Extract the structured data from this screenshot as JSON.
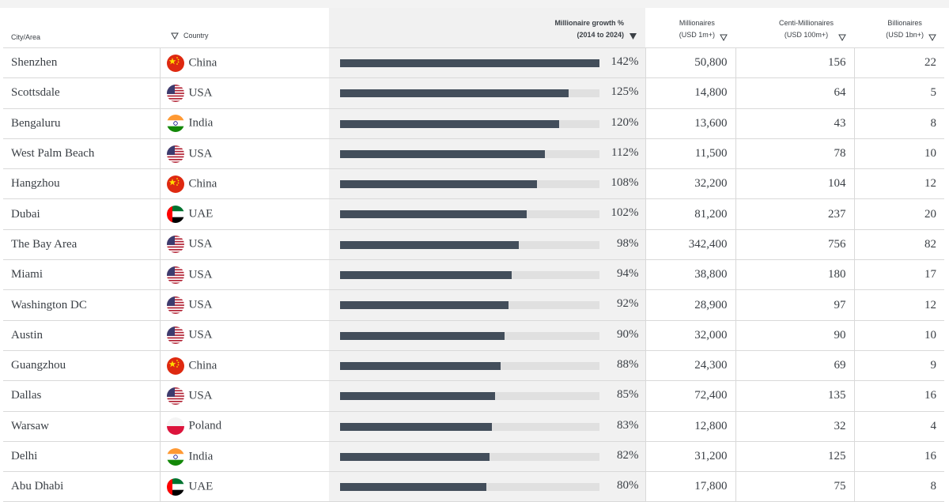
{
  "header": {
    "city": "City/Area",
    "country": "Country",
    "growth_line1": "Millionaire growth %",
    "growth_line2": "(2014 to 2024)",
    "millionaires_line1": "Millionaires",
    "millionaires_line2": "(USD 1m+)",
    "centi_line1": "Centi-Millionaires",
    "centi_line2": "(USD 100m+)",
    "billionaires_line1": "Billionaires",
    "billionaires_line2": "(USD 1bn+)"
  },
  "sort": {
    "column": "growth",
    "direction": "descending"
  },
  "bar_max_percent": 142,
  "colors": {
    "bar_fill": "#434e5b",
    "bar_track": "#e0e0e0",
    "highlight_column": "#f1f1f1"
  },
  "rows": [
    {
      "city": "Shenzhen",
      "country": "China",
      "flag": "china-flag-icon",
      "growth": 142,
      "growth_label": "142%",
      "millionaires": "50,800",
      "centi": "156",
      "billionaires": "22"
    },
    {
      "city": "Scottsdale",
      "country": "USA",
      "flag": "usa-flag-icon",
      "growth": 125,
      "growth_label": "125%",
      "millionaires": "14,800",
      "centi": "64",
      "billionaires": "5"
    },
    {
      "city": "Bengaluru",
      "country": "India",
      "flag": "india-flag-icon",
      "growth": 120,
      "growth_label": "120%",
      "millionaires": "13,600",
      "centi": "43",
      "billionaires": "8"
    },
    {
      "city": "West Palm Beach",
      "country": "USA",
      "flag": "usa-flag-icon",
      "growth": 112,
      "growth_label": "112%",
      "millionaires": "11,500",
      "centi": "78",
      "billionaires": "10"
    },
    {
      "city": "Hangzhou",
      "country": "China",
      "flag": "china-flag-icon",
      "growth": 108,
      "growth_label": "108%",
      "millionaires": "32,200",
      "centi": "104",
      "billionaires": "12"
    },
    {
      "city": "Dubai",
      "country": "UAE",
      "flag": "uae-flag-icon",
      "growth": 102,
      "growth_label": "102%",
      "millionaires": "81,200",
      "centi": "237",
      "billionaires": "20"
    },
    {
      "city": "The Bay Area",
      "country": "USA",
      "flag": "usa-flag-icon",
      "growth": 98,
      "growth_label": "98%",
      "millionaires": "342,400",
      "centi": "756",
      "billionaires": "82"
    },
    {
      "city": "Miami",
      "country": "USA",
      "flag": "usa-flag-icon",
      "growth": 94,
      "growth_label": "94%",
      "millionaires": "38,800",
      "centi": "180",
      "billionaires": "17"
    },
    {
      "city": "Washington DC",
      "country": "USA",
      "flag": "usa-flag-icon",
      "growth": 92,
      "growth_label": "92%",
      "millionaires": "28,900",
      "centi": "97",
      "billionaires": "12"
    },
    {
      "city": "Austin",
      "country": "USA",
      "flag": "usa-flag-icon",
      "growth": 90,
      "growth_label": "90%",
      "millionaires": "32,000",
      "centi": "90",
      "billionaires": "10"
    },
    {
      "city": "Guangzhou",
      "country": "China",
      "flag": "china-flag-icon",
      "growth": 88,
      "growth_label": "88%",
      "millionaires": "24,300",
      "centi": "69",
      "billionaires": "9"
    },
    {
      "city": "Dallas",
      "country": "USA",
      "flag": "usa-flag-icon",
      "growth": 85,
      "growth_label": "85%",
      "millionaires": "72,400",
      "centi": "135",
      "billionaires": "16"
    },
    {
      "city": "Warsaw",
      "country": "Poland",
      "flag": "poland-flag-icon",
      "growth": 83,
      "growth_label": "83%",
      "millionaires": "12,800",
      "centi": "32",
      "billionaires": "4"
    },
    {
      "city": "Delhi",
      "country": "India",
      "flag": "india-flag-icon",
      "growth": 82,
      "growth_label": "82%",
      "millionaires": "31,200",
      "centi": "125",
      "billionaires": "16"
    },
    {
      "city": "Abu Dhabi",
      "country": "UAE",
      "flag": "uae-flag-icon",
      "growth": 80,
      "growth_label": "80%",
      "millionaires": "17,800",
      "centi": "75",
      "billionaires": "8"
    }
  ]
}
